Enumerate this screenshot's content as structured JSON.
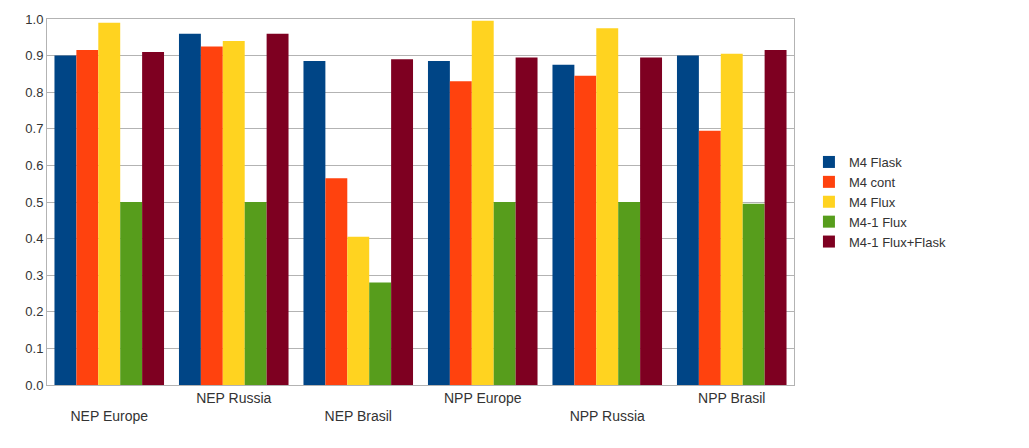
{
  "chart_data": {
    "type": "bar",
    "categories": [
      "NEP Europe",
      "NEP Russia",
      "NEP Brasil",
      "NPP Europe",
      "NPP Russia",
      "NPP Brasil"
    ],
    "series": [
      {
        "name": "M4 Flask",
        "color": "#004586",
        "values": [
          0.9,
          0.96,
          0.885,
          0.885,
          0.875,
          0.9
        ]
      },
      {
        "name": "M4 cont",
        "color": "#ff420e",
        "values": [
          0.915,
          0.925,
          0.565,
          0.83,
          0.845,
          0.695
        ]
      },
      {
        "name": "M4 Flux",
        "color": "#ffd320",
        "values": [
          0.99,
          0.94,
          0.405,
          0.995,
          0.975,
          0.905
        ]
      },
      {
        "name": "M4-1 Flux",
        "color": "#579d1c",
        "values": [
          0.5,
          0.5,
          0.28,
          0.5,
          0.5,
          0.495
        ]
      },
      {
        "name": "M4-1 Flux+Flask",
        "color": "#7e0021",
        "values": [
          0.91,
          0.96,
          0.89,
          0.895,
          0.895,
          0.915
        ]
      }
    ],
    "ylim": [
      0,
      1
    ],
    "yticks": [
      {
        "value": 0,
        "label": "0.0"
      },
      0.1,
      0.2,
      0.3,
      0.4,
      0.5,
      0.6,
      0.7,
      0.8,
      0.9,
      {
        "value": 1,
        "label": "1.0"
      }
    ],
    "grid": true,
    "legend": "right"
  }
}
